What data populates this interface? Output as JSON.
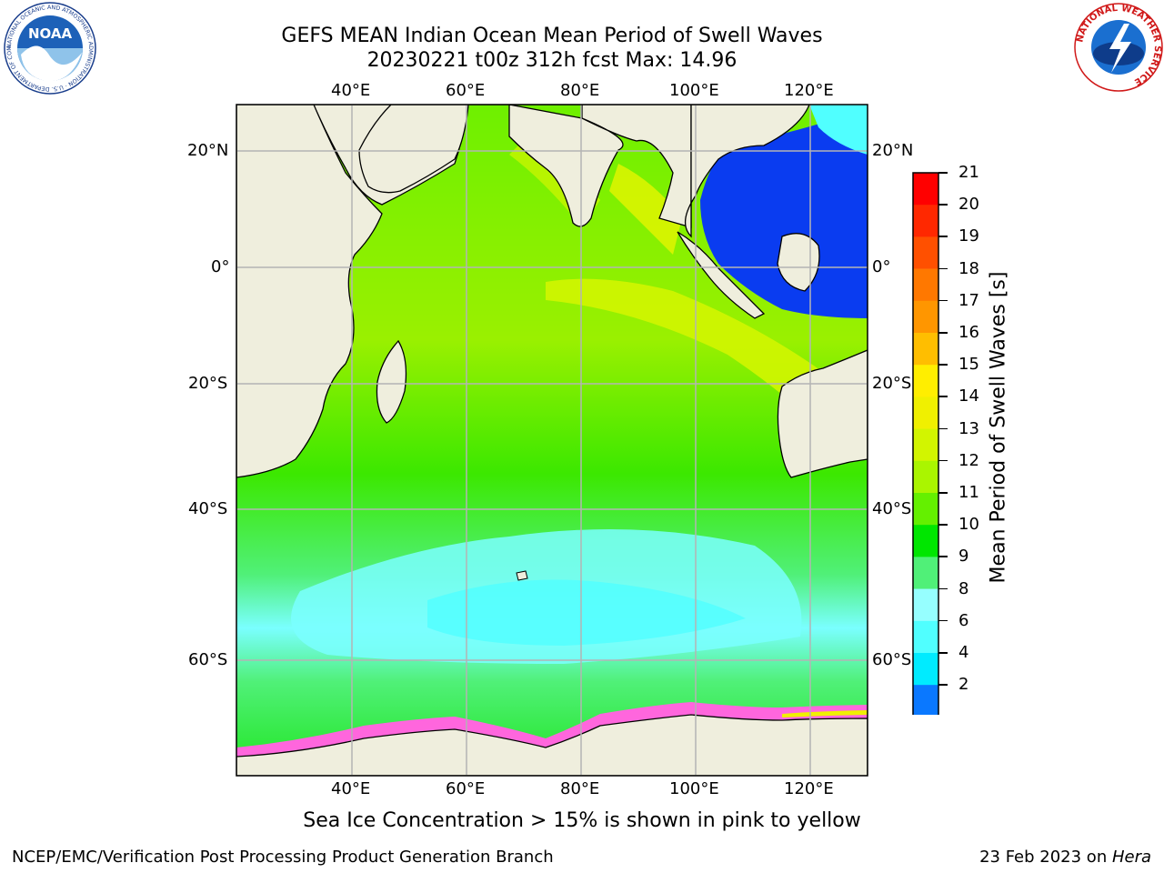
{
  "header": {
    "title_line1": "GEFS MEAN Indian Ocean Mean Period of Swell Waves",
    "title_line2": "20230221 t00z 312h fcst   Max: 14.96"
  },
  "logos": {
    "noaa": "NOAA",
    "noaa_ring_text": "NATIONAL OCEANIC AND ATMOSPHERIC ADMINISTRATION · U.S. DEPARTMENT OF COMMERCE",
    "nws_ring_text": "NATIONAL WEATHER SERVICE"
  },
  "map": {
    "lon_ticks": [
      "40°E",
      "60°E",
      "80°E",
      "100°E",
      "120°E"
    ],
    "lat_ticks": [
      "20°N",
      "0°",
      "20°S",
      "40°S",
      "60°S"
    ],
    "lon_range": [
      20,
      130
    ],
    "lat_range": [
      -72,
      28
    ],
    "grid": true,
    "land_color": "#efeedd"
  },
  "colorbar": {
    "label": "Mean Period of Swell Waves [s]",
    "ticks": [
      "21",
      "20",
      "19",
      "18",
      "17",
      "16",
      "15",
      "14",
      "13",
      "12",
      "11",
      "10",
      "9",
      "8",
      "6",
      "4",
      "2"
    ],
    "colors_top_to_bottom": [
      "#ff0000",
      "#ff2800",
      "#ff5000",
      "#ff7800",
      "#ff9600",
      "#ffbe00",
      "#ffee00",
      "#f0f000",
      "#d2f500",
      "#aaf500",
      "#64f000",
      "#00e600",
      "#50f078",
      "#96ffff",
      "#50ffff",
      "#00ebff",
      "#0a78ff"
    ],
    "under_color": "#0000ee"
  },
  "subtitle": "Sea Ice Concentration > 15% is shown in pink to yellow",
  "footer": {
    "left": "NCEP/EMC/Verification Post Processing Product Generation Branch",
    "right_prefix": "23 Feb 2023 on ",
    "right_host": "Hera"
  }
}
